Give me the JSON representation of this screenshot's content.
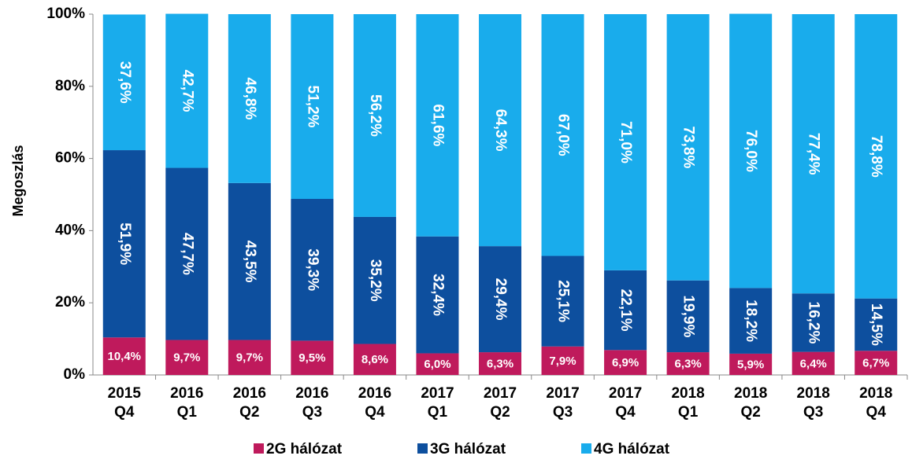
{
  "chart_data": {
    "type": "stacked_bar",
    "y_label": "Megoszlás",
    "categories": [
      "2015 Q4",
      "2016 Q1",
      "2016 Q2",
      "2016 Q3",
      "2016 Q4",
      "2017 Q1",
      "2017 Q2",
      "2017 Q3",
      "2017 Q4",
      "2018 Q1",
      "2018 Q2",
      "2018 Q3",
      "2018 Q4"
    ],
    "series": [
      {
        "name": "2G hálózat",
        "color": "#bf1a5c",
        "values": [
          10.4,
          9.7,
          9.7,
          9.5,
          8.6,
          6.0,
          6.3,
          7.9,
          6.9,
          6.3,
          5.9,
          6.4,
          6.7
        ],
        "value_labels": [
          "10,4%",
          "9,7%",
          "9,7%",
          "9,5%",
          "8,6%",
          "6,0%",
          "6,3%",
          "7,9%",
          "6,9%",
          "6,3%",
          "5,9%",
          "6,4%",
          "6,7%"
        ]
      },
      {
        "name": "3G hálózat",
        "color": "#0d4f9e",
        "values": [
          51.9,
          47.7,
          43.5,
          39.3,
          35.2,
          32.4,
          29.4,
          25.1,
          22.1,
          19.9,
          18.2,
          16.2,
          14.5
        ],
        "value_labels": [
          "51,9%",
          "47,7%",
          "43,5%",
          "39,3%",
          "35,2%",
          "32,4%",
          "29,4%",
          "25,1%",
          "22,1%",
          "19,9%",
          "18,2%",
          "16,2%",
          "14,5%"
        ]
      },
      {
        "name": "4G hálózat",
        "color": "#19acec",
        "values": [
          37.6,
          42.7,
          46.8,
          51.2,
          56.2,
          61.6,
          64.3,
          67.0,
          71.0,
          73.8,
          76.0,
          77.4,
          78.8
        ],
        "value_labels": [
          "37,6%",
          "42,7%",
          "46,8%",
          "51,2%",
          "56,2%",
          "61,6%",
          "64,3%",
          "67,0%",
          "71,0%",
          "73,8%",
          "76,0%",
          "77,4%",
          "78,8%"
        ]
      }
    ],
    "ylim": [
      0,
      100
    ],
    "yticks": [
      {
        "value": 0,
        "label": "0%"
      },
      {
        "value": 20,
        "label": "20%"
      },
      {
        "value": 40,
        "label": "40%"
      },
      {
        "value": 60,
        "label": "60%"
      },
      {
        "value": 80,
        "label": "80%"
      },
      {
        "value": 100,
        "label": "100%"
      }
    ],
    "legend": "bottom"
  }
}
